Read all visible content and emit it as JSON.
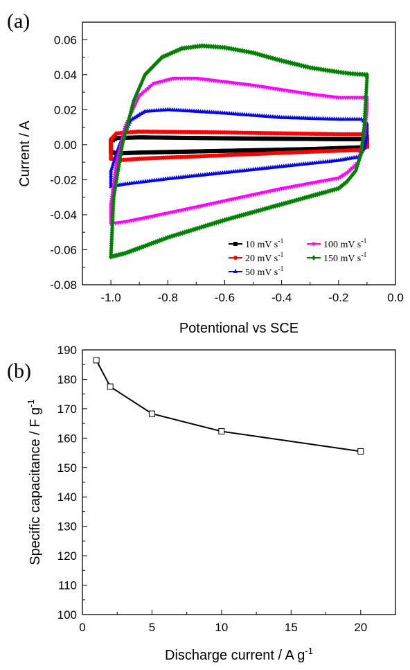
{
  "chart_data": [
    {
      "panel_label": "(a)",
      "type": "line",
      "xlabel": "Potentional vs SCE",
      "ylabel": "Current / A",
      "xlim": [
        -1.1,
        0.0
      ],
      "ylim": [
        -0.08,
        0.07
      ],
      "xticks": [
        -1.0,
        -0.8,
        -0.6,
        -0.4,
        -0.2,
        0.0
      ],
      "xtick_labels": [
        "-1.0",
        "-0.8",
        "-0.6",
        "-0.4",
        "-0.2",
        "0.0"
      ],
      "yticks": [
        -0.08,
        -0.06,
        -0.04,
        -0.02,
        0.0,
        0.02,
        0.04,
        0.06
      ],
      "ytick_labels": [
        "-0.08",
        "-0.06",
        "-0.04",
        "-0.02",
        "0.00",
        "0.02",
        "0.04",
        "0.06"
      ],
      "legend_position": "bottom-right",
      "series": [
        {
          "label": "10 mV s",
          "sup": "-1",
          "color": "#000000",
          "marker": "square",
          "upper": [
            [
              -1.0,
              0.002
            ],
            [
              -0.98,
              0.0038
            ],
            [
              -0.9,
              0.0042
            ],
            [
              -0.5,
              0.0035
            ],
            [
              -0.2,
              0.0032
            ],
            [
              -0.12,
              0.0032
            ],
            [
              -0.1,
              0.003
            ]
          ],
          "lower": [
            [
              -0.1,
              -0.001
            ],
            [
              -0.12,
              -0.0015
            ],
            [
              -0.3,
              -0.0025
            ],
            [
              -0.6,
              -0.0035
            ],
            [
              -0.9,
              -0.0045
            ],
            [
              -0.98,
              -0.005
            ],
            [
              -1.0,
              -0.004
            ]
          ]
        },
        {
          "label": "20 mV s",
          "sup": "-1",
          "color": "#ff0000",
          "marker": "circle",
          "upper": [
            [
              -1.0,
              0.003
            ],
            [
              -0.98,
              0.0065
            ],
            [
              -0.9,
              0.0075
            ],
            [
              -0.6,
              0.007
            ],
            [
              -0.2,
              0.006
            ],
            [
              -0.12,
              0.006
            ],
            [
              -0.1,
              0.005
            ]
          ],
          "lower": [
            [
              -0.1,
              -0.001
            ],
            [
              -0.12,
              -0.003
            ],
            [
              -0.3,
              -0.004
            ],
            [
              -0.6,
              -0.006
            ],
            [
              -0.9,
              -0.008
            ],
            [
              -0.98,
              -0.009
            ],
            [
              -1.0,
              -0.008
            ]
          ]
        },
        {
          "label": "50 mV s",
          "sup": "-1",
          "color": "#0000ff",
          "marker": "triangle-up",
          "upper": [
            [
              -1.0,
              -0.015
            ],
            [
              -0.97,
              0.0
            ],
            [
              -0.93,
              0.014
            ],
            [
              -0.88,
              0.019
            ],
            [
              -0.8,
              0.02
            ],
            [
              -0.6,
              0.018
            ],
            [
              -0.4,
              0.0155
            ],
            [
              -0.2,
              0.0145
            ],
            [
              -0.12,
              0.0145
            ],
            [
              -0.1,
              0.012
            ]
          ],
          "lower": [
            [
              -0.1,
              0.005
            ],
            [
              -0.11,
              -0.002
            ],
            [
              -0.13,
              -0.007
            ],
            [
              -0.2,
              -0.009
            ],
            [
              -0.4,
              -0.0125
            ],
            [
              -0.6,
              -0.016
            ],
            [
              -0.8,
              -0.0195
            ],
            [
              -0.95,
              -0.0225
            ],
            [
              -1.0,
              -0.024
            ]
          ]
        },
        {
          "label": "100 mV s",
          "sup": "-1",
          "color": "#ff00ff",
          "marker": "triangle-down",
          "upper": [
            [
              -1.0,
              -0.035
            ],
            [
              -0.98,
              -0.01
            ],
            [
              -0.95,
              0.01
            ],
            [
              -0.9,
              0.028
            ],
            [
              -0.85,
              0.035
            ],
            [
              -0.78,
              0.038
            ],
            [
              -0.7,
              0.038
            ],
            [
              -0.5,
              0.034
            ],
            [
              -0.3,
              0.029
            ],
            [
              -0.2,
              0.027
            ],
            [
              -0.12,
              0.027
            ],
            [
              -0.1,
              0.027
            ]
          ],
          "lower": [
            [
              -0.1,
              0.02
            ],
            [
              -0.11,
              0.005
            ],
            [
              -0.13,
              -0.01
            ],
            [
              -0.17,
              -0.016
            ],
            [
              -0.2,
              -0.019
            ],
            [
              -0.4,
              -0.025
            ],
            [
              -0.6,
              -0.032
            ],
            [
              -0.8,
              -0.039
            ],
            [
              -0.95,
              -0.044
            ],
            [
              -1.0,
              -0.045
            ]
          ]
        },
        {
          "label": "150 mV s",
          "sup": "-1",
          "color": "#008000",
          "marker": "diamond",
          "upper": [
            [
              -1.0,
              -0.064
            ],
            [
              -0.99,
              -0.03
            ],
            [
              -0.96,
              0.0
            ],
            [
              -0.92,
              0.025
            ],
            [
              -0.88,
              0.04
            ],
            [
              -0.82,
              0.05
            ],
            [
              -0.75,
              0.055
            ],
            [
              -0.68,
              0.0565
            ],
            [
              -0.6,
              0.0555
            ],
            [
              -0.5,
              0.0525
            ],
            [
              -0.4,
              0.048
            ],
            [
              -0.3,
              0.044
            ],
            [
              -0.2,
              0.0415
            ],
            [
              -0.15,
              0.0405
            ],
            [
              -0.1,
              0.04
            ]
          ],
          "lower": [
            [
              -0.1,
              0.038
            ],
            [
              -0.11,
              0.01
            ],
            [
              -0.12,
              -0.005
            ],
            [
              -0.14,
              -0.015
            ],
            [
              -0.17,
              -0.021
            ],
            [
              -0.2,
              -0.025
            ],
            [
              -0.4,
              -0.034
            ],
            [
              -0.6,
              -0.043
            ],
            [
              -0.8,
              -0.053
            ],
            [
              -0.95,
              -0.062
            ],
            [
              -1.0,
              -0.064
            ]
          ]
        }
      ]
    },
    {
      "panel_label": "(b)",
      "type": "line",
      "xlabel": "Discharge current / A g",
      "xlabel_sup": "-1",
      "ylabel": "Specific capacitance / F g",
      "ylabel_sup": "-1",
      "xlim": [
        0,
        22.5
      ],
      "ylim": [
        100,
        190
      ],
      "xticks": [
        0,
        5,
        10,
        15,
        20
      ],
      "xtick_labels": [
        "0",
        "5",
        "10",
        "15",
        "20"
      ],
      "yticks": [
        100,
        110,
        120,
        130,
        140,
        150,
        160,
        170,
        180,
        190
      ],
      "ytick_labels": [
        "100",
        "110",
        "120",
        "130",
        "140",
        "150",
        "160",
        "170",
        "180",
        "190"
      ],
      "series": [
        {
          "color": "#000000",
          "marker": "open-square",
          "x": [
            1,
            2,
            5,
            10,
            20
          ],
          "values": [
            186.5,
            177.5,
            168.3,
            162.3,
            155.5
          ]
        }
      ]
    }
  ]
}
